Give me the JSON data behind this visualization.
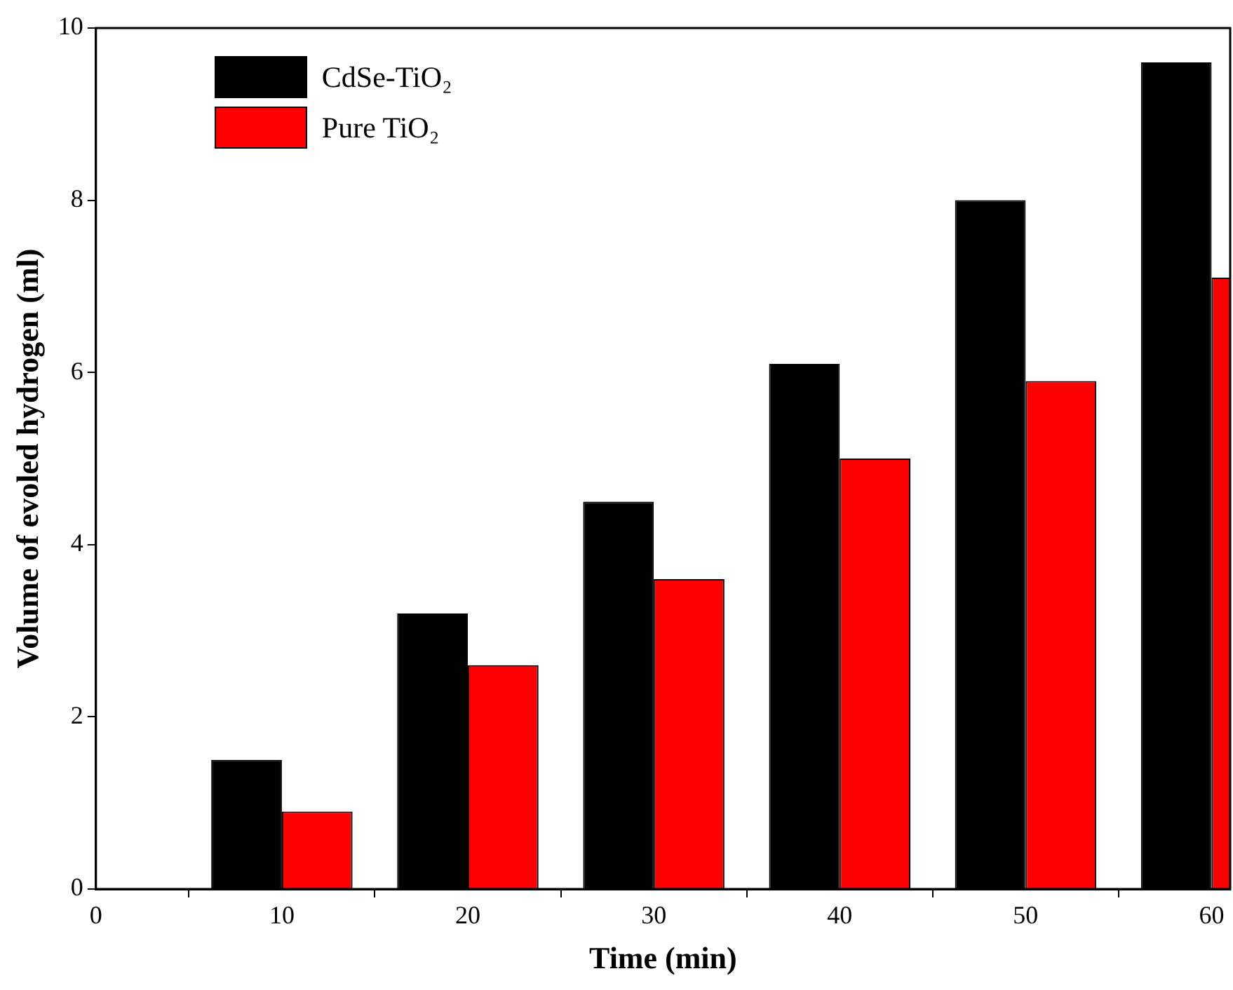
{
  "chart_data": {
    "type": "bar",
    "xlabel": "Time (min)",
    "ylabel": "Volume of evoled hydrogen (ml)",
    "x": [
      10,
      20,
      30,
      40,
      50,
      60
    ],
    "series": [
      {
        "name": "CdSe-TiO₂",
        "color": "#000000",
        "values": [
          1.5,
          3.2,
          4.5,
          6.1,
          8.0,
          9.6
        ]
      },
      {
        "name": "Pure TiO₂",
        "color": "#ff0000",
        "values": [
          0.9,
          2.6,
          3.6,
          5.0,
          5.9,
          7.1
        ]
      }
    ],
    "xlim": [
      0,
      61
    ],
    "xticks": [
      0,
      10,
      20,
      30,
      40,
      50,
      60
    ],
    "ylim": [
      0,
      10
    ],
    "yticks": [
      0,
      2,
      4,
      6,
      8,
      10
    ],
    "grid": false,
    "legend": "top left"
  }
}
